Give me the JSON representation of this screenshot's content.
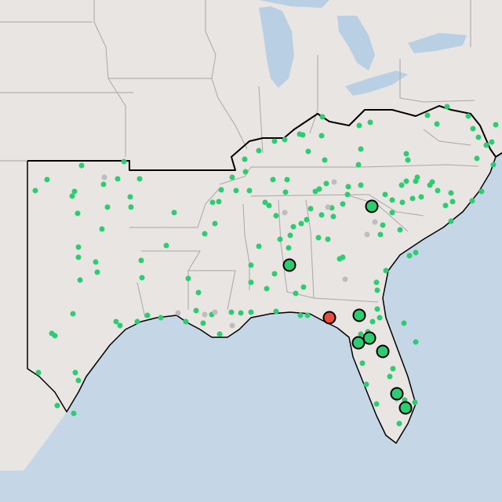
{
  "map": {
    "region": "southeastern-united-states",
    "basemap": "grayscale-terrain",
    "colors": {
      "land": "#e9e5e2",
      "water": "#c5d7e6",
      "great_lakes": "#b9cfe3",
      "state_border": "#a8a8a8",
      "region_outline": "#000000",
      "marker_small": "#2ecc71",
      "marker_small_muted": "#bdbdbd",
      "marker_large": "#2ecc71",
      "marker_highlight": "#e74c3c",
      "marker_stroke": "#000000"
    },
    "marker_types": [
      "small-green-dot",
      "small-gray-dot",
      "large-green-circle",
      "large-red-circle"
    ]
  }
}
